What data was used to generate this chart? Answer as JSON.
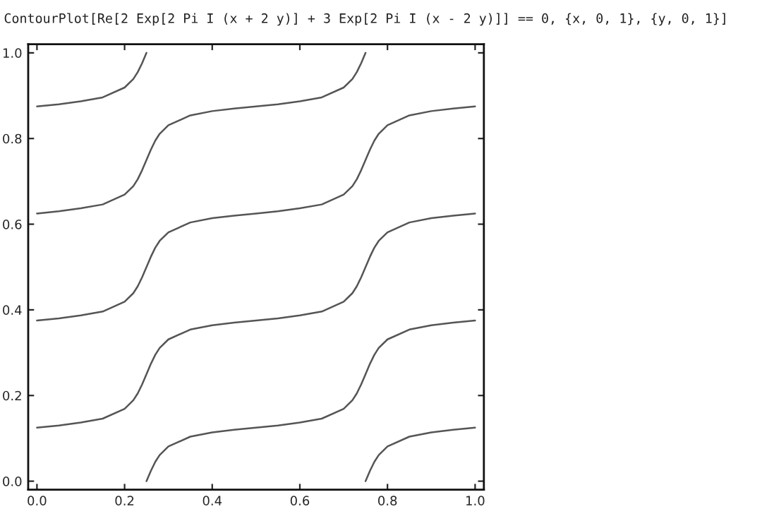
{
  "chart_data": {
    "type": "line",
    "title": "ContourPlot[Re[2 Exp[2 Pi I (x + 2 y)] + 3 Exp[2 Pi I (x - 2 y)]] == 0, {x, 0, 1}, {y, 0, 1}]",
    "xlim": [
      -0.02,
      1.02
    ],
    "ylim": [
      -0.02,
      1.02
    ],
    "xticks": [
      {
        "value": 0,
        "label": "0.0"
      },
      0.2,
      0.4,
      0.6,
      0.8,
      {
        "value": 1,
        "label": "1.0"
      }
    ],
    "yticks": [
      {
        "value": 0,
        "label": "0.0"
      },
      0.2,
      0.4,
      0.6,
      0.8,
      {
        "value": 1,
        "label": "1.0"
      }
    ],
    "grid": false,
    "legend": false,
    "marker": "none",
    "line_style": "solid",
    "series": [
      {
        "color": "#555555",
        "x": [
          0.75,
          0.76,
          0.77,
          0.78,
          0.8,
          0.85,
          0.9,
          0.95,
          1.0
        ],
        "values": [
          0,
          0.024,
          0.045,
          0.061,
          0.081,
          0.104,
          0.114,
          0.12,
          0.125
        ]
      },
      {
        "color": "#555555",
        "x": [
          0.25,
          0.26,
          0.27,
          0.28,
          0.3,
          0.35,
          0.4,
          0.45,
          0.5,
          0.55,
          0.6,
          0.65,
          0.7,
          0.72,
          0.73,
          0.74,
          0.75,
          0.76,
          0.77,
          0.78,
          0.8,
          0.85,
          0.9,
          0.95,
          1.0
        ],
        "values": [
          0,
          0.024,
          0.045,
          0.061,
          0.081,
          0.104,
          0.114,
          0.12,
          0.125,
          0.13,
          0.137,
          0.146,
          0.169,
          0.189,
          0.205,
          0.226,
          0.25,
          0.274,
          0.295,
          0.311,
          0.331,
          0.354,
          0.364,
          0.37,
          0.375
        ]
      },
      {
        "color": "#555555",
        "x": [
          0,
          0.05,
          0.1,
          0.15,
          0.2,
          0.22,
          0.23,
          0.24,
          0.25,
          0.26,
          0.27,
          0.28,
          0.3,
          0.35,
          0.4,
          0.45,
          0.5,
          0.55,
          0.6,
          0.65,
          0.7,
          0.72,
          0.73,
          0.74,
          0.75,
          0.76,
          0.77,
          0.78,
          0.8,
          0.85,
          0.9,
          0.95,
          1.0
        ],
        "values": [
          0.125,
          0.13,
          0.137,
          0.146,
          0.169,
          0.189,
          0.205,
          0.226,
          0.25,
          0.274,
          0.295,
          0.311,
          0.331,
          0.354,
          0.364,
          0.37,
          0.375,
          0.38,
          0.387,
          0.396,
          0.419,
          0.439,
          0.455,
          0.476,
          0.5,
          0.524,
          0.545,
          0.561,
          0.581,
          0.604,
          0.614,
          0.62,
          0.625
        ]
      },
      {
        "color": "#555555",
        "x": [
          0,
          0.05,
          0.1,
          0.15,
          0.2,
          0.22,
          0.23,
          0.24,
          0.25,
          0.26,
          0.27,
          0.28,
          0.3,
          0.35,
          0.4,
          0.45,
          0.5,
          0.55,
          0.6,
          0.65,
          0.7,
          0.72,
          0.73,
          0.74,
          0.75,
          0.76,
          0.77,
          0.78,
          0.8,
          0.85,
          0.9,
          0.95,
          1.0
        ],
        "values": [
          0.375,
          0.38,
          0.387,
          0.396,
          0.419,
          0.439,
          0.455,
          0.476,
          0.5,
          0.524,
          0.545,
          0.561,
          0.581,
          0.604,
          0.614,
          0.62,
          0.625,
          0.63,
          0.637,
          0.646,
          0.669,
          0.689,
          0.705,
          0.726,
          0.75,
          0.774,
          0.795,
          0.811,
          0.831,
          0.854,
          0.864,
          0.87,
          0.875
        ]
      },
      {
        "color": "#555555",
        "x": [
          0,
          0.05,
          0.1,
          0.15,
          0.2,
          0.22,
          0.23,
          0.24,
          0.25,
          0.26,
          0.27,
          0.28,
          0.3,
          0.35,
          0.4,
          0.45,
          0.5,
          0.55,
          0.6,
          0.65,
          0.7,
          0.72,
          0.73,
          0.74,
          0.75
        ],
        "values": [
          0.625,
          0.63,
          0.637,
          0.646,
          0.669,
          0.689,
          0.705,
          0.726,
          0.75,
          0.774,
          0.795,
          0.811,
          0.831,
          0.854,
          0.864,
          0.87,
          0.875,
          0.88,
          0.887,
          0.896,
          0.919,
          0.939,
          0.955,
          0.976,
          1.0
        ]
      },
      {
        "color": "#555555",
        "x": [
          0,
          0.05,
          0.1,
          0.15,
          0.2,
          0.22,
          0.23,
          0.24,
          0.25
        ],
        "values": [
          0.875,
          0.88,
          0.887,
          0.896,
          0.919,
          0.939,
          0.955,
          0.976,
          1.0
        ]
      }
    ]
  }
}
